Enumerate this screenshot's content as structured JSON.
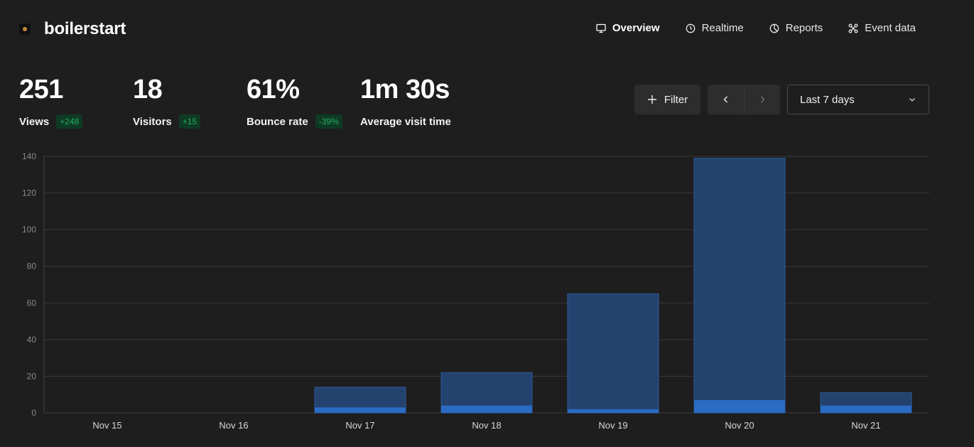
{
  "app": {
    "name": "boilerstart"
  },
  "nav": [
    {
      "label": "Overview",
      "icon": "monitor-icon",
      "active": true
    },
    {
      "label": "Realtime",
      "icon": "clock-icon",
      "active": false
    },
    {
      "label": "Reports",
      "icon": "pie-chart-icon",
      "active": false
    },
    {
      "label": "Event data",
      "icon": "nodes-icon",
      "active": false
    }
  ],
  "metrics": [
    {
      "value": "251",
      "label": "Views",
      "change": "+248"
    },
    {
      "value": "18",
      "label": "Visitors",
      "change": "+15"
    },
    {
      "value": "61%",
      "label": "Bounce rate",
      "change": "-39%"
    },
    {
      "value": "1m 30s",
      "label": "Average visit time",
      "change": ""
    }
  ],
  "controls": {
    "filter_label": "Filter",
    "date_range": "Last 7 days"
  },
  "colors": {
    "views_bar": "#24426e",
    "visitors_bar": "#2a6bc4",
    "badge_text": "#27ae60",
    "badge_bg": "#0f3a24"
  },
  "chart_data": {
    "type": "bar",
    "stacked_overlay": true,
    "categories": [
      "Nov 15",
      "Nov 16",
      "Nov 17",
      "Nov 18",
      "Nov 19",
      "Nov 20",
      "Nov 21"
    ],
    "series": [
      {
        "values": [
          0,
          0,
          14,
          22,
          65,
          139,
          11
        ]
      },
      {
        "values": [
          0,
          0,
          3,
          4,
          2,
          7,
          4
        ]
      }
    ],
    "ylim": [
      0,
      140
    ],
    "yticks": [
      0,
      20,
      40,
      60,
      80,
      100,
      120,
      140
    ],
    "grid": true
  }
}
